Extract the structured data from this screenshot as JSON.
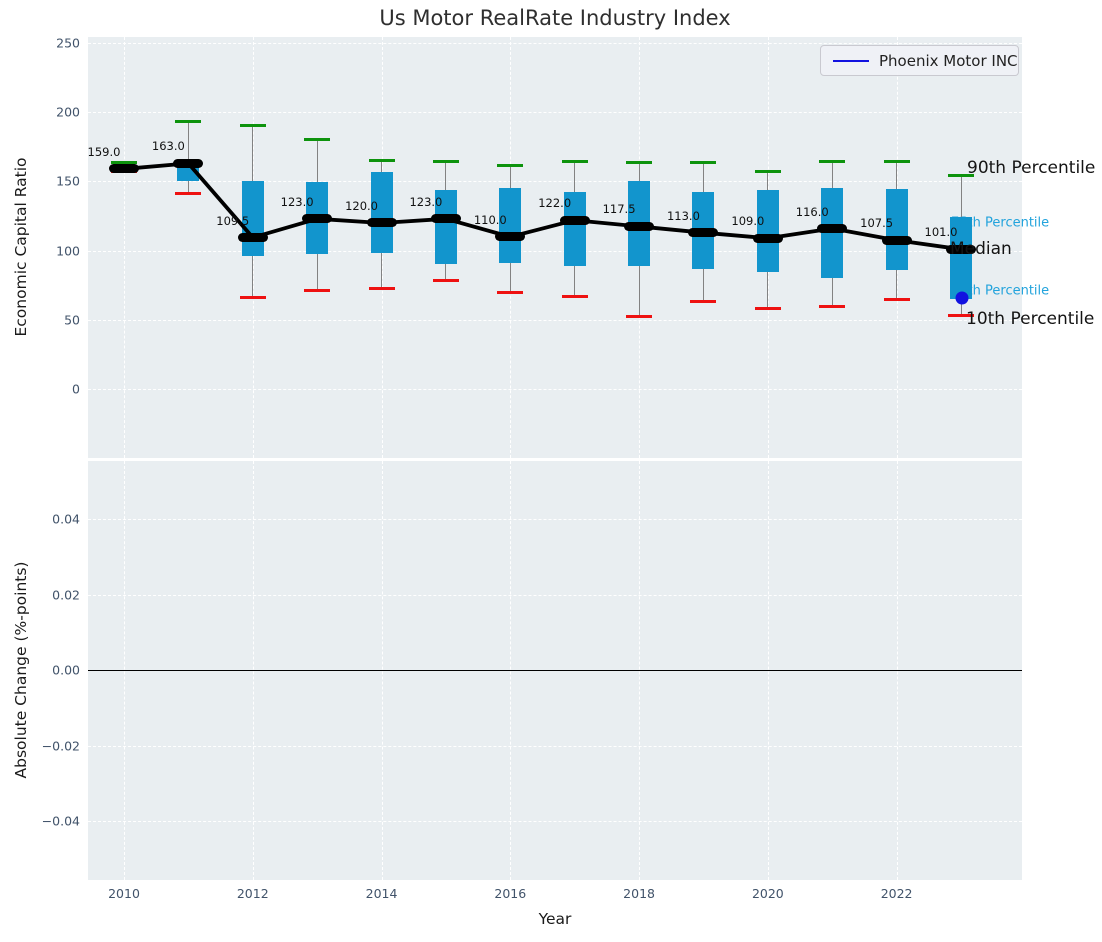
{
  "title": {
    "text": "Us Motor RealRate Industry Index"
  },
  "legend": {
    "label": "Phoenix Motor INC"
  },
  "axes": {
    "top": {
      "ylabel": "Economic Capital Ratio",
      "yticks": [
        "250",
        "200",
        "150",
        "100",
        "50",
        "0"
      ],
      "ytick_values": [
        250,
        200,
        150,
        100,
        50,
        0
      ]
    },
    "bottom": {
      "ylabel": "Absolute Change (%-points)",
      "yticks": [
        "0.04",
        "0.02",
        "0.00",
        "−0.02",
        "−0.04"
      ],
      "ytick_values": [
        0.04,
        0.02,
        0.0,
        -0.02,
        -0.04
      ]
    },
    "x": {
      "label": "Year",
      "xticks": [
        "2010",
        "2012",
        "2014",
        "2016",
        "2018",
        "2020",
        "2022"
      ],
      "xtick_values": [
        2010,
        2012,
        2014,
        2016,
        2018,
        2020,
        2022
      ]
    }
  },
  "annotations": {
    "p90": "90th Percentile",
    "p75": "75th Percentile",
    "median": "Median",
    "p25": "25th Percentile",
    "p10": "10th Percentile"
  },
  "colors": {
    "axes_bg": "#e9eef1",
    "grid": "#ffffff",
    "box_blue": "#1295cd",
    "whisker_gray": "#828282",
    "cap_green": "#0d930d",
    "cap_red": "#ee1111",
    "median_black": "#000000",
    "annotation_teal": "#22a3dc",
    "phoenix_blue": "#1212e0",
    "tick_slate": "#41536a"
  },
  "chart_data": {
    "type": "boxplot+line",
    "title": "Us Motor RealRate Industry Index",
    "xlabel": "Year",
    "ylabel_top": "Economic Capital Ratio",
    "ylabel_bottom": "Absolute Change (%-points)",
    "xlim": [
      2009.45,
      2023.95
    ],
    "ylim_top": [
      -50,
      254
    ],
    "ylim_bottom": [
      -0.055,
      0.055
    ],
    "grid": "white-dashed",
    "legend_position": "upper right",
    "years": [
      2010,
      2011,
      2012,
      2013,
      2014,
      2015,
      2016,
      2017,
      2018,
      2019,
      2020,
      2021,
      2022,
      2023
    ],
    "median": [
      159,
      163,
      109.5,
      123,
      120,
      123,
      110,
      122,
      117.5,
      113,
      109,
      116,
      107.5,
      101
    ],
    "median_labels": [
      "159.0",
      "163.0",
      "109.5",
      "123.0",
      "120.0",
      "123.0",
      "110.0",
      "122.0",
      "117.5",
      "113.0",
      "109.0",
      "116.0",
      "107.5",
      "101.0"
    ],
    "q1": [
      157.5,
      150,
      96,
      97.5,
      98.5,
      90.5,
      91,
      89,
      89,
      87,
      84.5,
      80.5,
      86,
      65
    ],
    "q3": [
      160.5,
      165,
      150.5,
      149.5,
      156.5,
      143.5,
      145,
      142.5,
      150,
      142,
      144,
      145,
      144.5,
      124.5
    ],
    "p10": [
      157,
      141,
      66,
      71,
      72.5,
      78.5,
      70,
      67,
      52.5,
      63,
      58.5,
      59.5,
      64.5,
      53.5
    ],
    "p90": [
      163.5,
      193,
      190,
      180.5,
      165,
      164.5,
      161.5,
      164,
      163.5,
      163.5,
      157.5,
      164,
      164,
      154.5
    ],
    "phoenix_point": {
      "year": 2023,
      "value": 66
    },
    "bottom_zero_line": 0.0
  }
}
